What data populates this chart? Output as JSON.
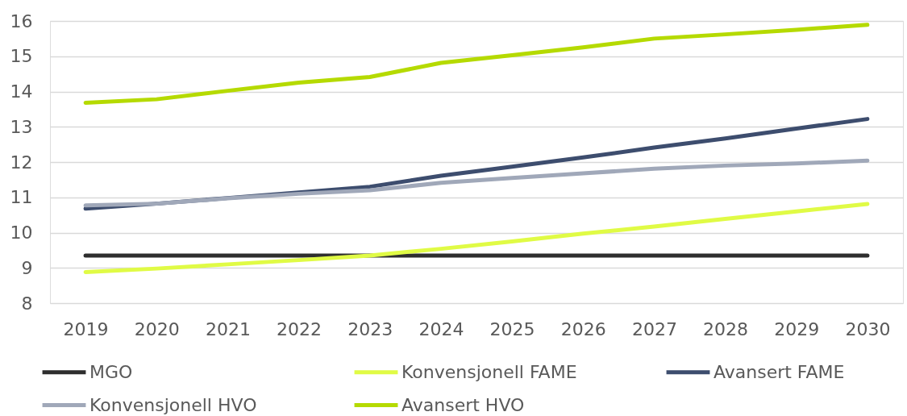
{
  "chart_data": {
    "type": "line",
    "categories": [
      "2019",
      "2020",
      "2021",
      "2022",
      "2023",
      "2024",
      "2025",
      "2026",
      "2027",
      "2028",
      "2029",
      "2030"
    ],
    "ylim": [
      8,
      16
    ],
    "yticks": [
      8,
      9,
      10,
      11,
      12,
      13,
      14,
      15,
      16
    ],
    "grid": "y",
    "legend": "bottom",
    "series": [
      {
        "name": "MGO",
        "color": "#2e2e2e",
        "values": [
          9.35,
          9.35,
          9.35,
          9.35,
          9.35,
          9.35,
          9.35,
          9.35,
          9.35,
          9.35,
          9.35,
          9.35
        ]
      },
      {
        "name": "Konvensjonell FAME",
        "color": "#e0fb45",
        "values": [
          8.88,
          8.98,
          9.1,
          9.22,
          9.35,
          9.54,
          9.75,
          9.97,
          10.17,
          10.39,
          10.6,
          10.81
        ]
      },
      {
        "name": "Avansert FAME",
        "color": "#3d4d6e",
        "values": [
          10.68,
          10.82,
          10.98,
          11.14,
          11.3,
          11.61,
          11.87,
          12.13,
          12.41,
          12.67,
          12.95,
          13.22
        ]
      },
      {
        "name": "Konvensjonell HVO",
        "color": "#a0a8b9",
        "values": [
          10.77,
          10.82,
          10.97,
          11.1,
          11.2,
          11.41,
          11.55,
          11.68,
          11.81,
          11.9,
          11.96,
          12.04
        ]
      },
      {
        "name": "Avansert HVO",
        "color": "#b5da00",
        "values": [
          13.68,
          13.78,
          14.02,
          14.25,
          14.41,
          14.81,
          15.03,
          15.25,
          15.5,
          15.62,
          15.75,
          15.89
        ]
      }
    ]
  }
}
